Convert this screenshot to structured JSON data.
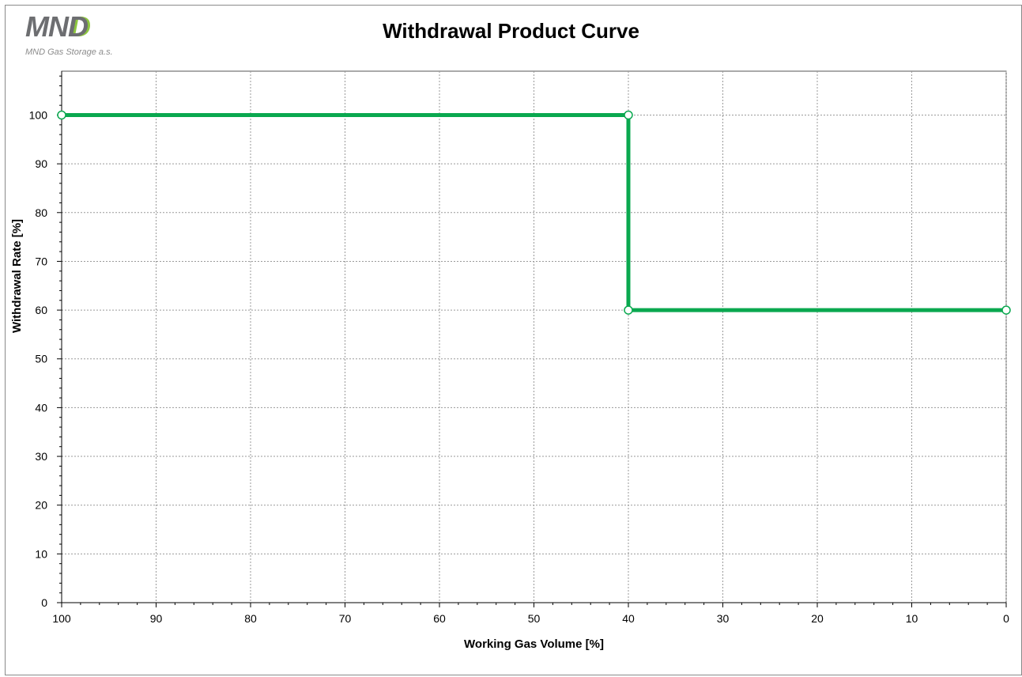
{
  "logo": {
    "mark": "MND",
    "subtitle": "MND Gas Storage a.s."
  },
  "colors": {
    "series": "#0aa84f",
    "grid": "#9a9a9a",
    "axis": "#000000",
    "logo_gray": "#6d6e71",
    "logo_green": "#8dc63f"
  },
  "chart_data": {
    "type": "line",
    "title": "Withdrawal Product Curve",
    "xlabel": "Working Gas Volume [%]",
    "ylabel": "Withdrawal Rate [%]",
    "xlim": [
      100,
      0
    ],
    "ylim": [
      0,
      109
    ],
    "x_reversed": true,
    "xticks": [
      100,
      90,
      80,
      70,
      60,
      50,
      40,
      30,
      20,
      10,
      0
    ],
    "yticks": [
      0,
      10,
      20,
      30,
      40,
      50,
      60,
      70,
      80,
      90,
      100
    ],
    "grid": true,
    "legend": "none",
    "series": [
      {
        "x": [
          100,
          40,
          40,
          0
        ],
        "y": [
          100,
          100,
          60,
          60
        ],
        "color": "#0aa84f",
        "markers": "open-circle"
      }
    ]
  }
}
